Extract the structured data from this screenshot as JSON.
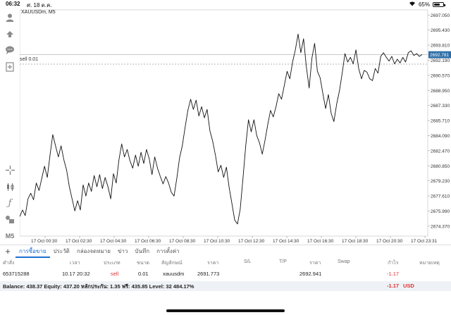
{
  "status_bar": {
    "time": "06:32",
    "date": "ศ. 18 ต.ค.",
    "battery": "65%",
    "battery_level": 0.65
  },
  "chart": {
    "title": "XAUUSDm, M5",
    "sell_line_label": "sell 0.01",
    "current_price": "2692.781"
  },
  "toolbar": {
    "timeframe": "M5"
  },
  "tabs": {
    "items": [
      "การซื้อขาย",
      "ประวัติ",
      "กล่องจดหมาย",
      "ข่าว",
      "บันทึก",
      "การตั้งค่า"
    ],
    "active": 0
  },
  "orders": {
    "headers": [
      "คำสั่ง",
      "เวลา",
      "ประเภท",
      "ขนาด",
      "สัญลักษณ์",
      "ราคา",
      "S/L",
      "T/P",
      "ราคา",
      "Swap",
      "กำไร",
      "หมายเหตุ"
    ],
    "rows": [
      {
        "ticket": "653715288",
        "time": "10.17 20:32",
        "type": "sell",
        "size": "0.01",
        "symbol": "xauusdm",
        "open_price": "2691.773",
        "sl": "",
        "tp": "",
        "current_price": "2692.941",
        "swap": "",
        "profit": "-1.17",
        "comment": ""
      }
    ]
  },
  "balance": {
    "text": "Balance: 438.37  Equity: 437.20  หลักประกัน: 1.35  ฟรี: 435.85  Level: 32 484.17%",
    "profit": "-1.17",
    "currency": "USD"
  },
  "chart_data": {
    "type": "line",
    "symbol": "XAUUSDm",
    "timeframe": "M5",
    "x_ticks": [
      "17 Oct 00:30",
      "17 Oct 02:30",
      "17 Oct 04:30",
      "17 Oct 06:30",
      "17 Oct 08:30",
      "17 Oct 10:30",
      "17 Oct 12:30",
      "17 Oct 14:30",
      "17 Oct 16:30",
      "17 Oct 18:30",
      "17 Oct 20:30",
      "17 Oct 23:31"
    ],
    "y_ticks": [
      2697.05,
      2695.43,
      2693.81,
      2692.19,
      2690.57,
      2688.95,
      2687.33,
      2685.71,
      2684.09,
      2682.47,
      2680.85,
      2679.23,
      2677.61,
      2675.99,
      2674.37
    ],
    "ylim": [
      2673.3,
      2697.6
    ],
    "sell_line": 2691.773,
    "last_price": 2692.781,
    "series": [
      {
        "values": [
          2675.4,
          2676.1,
          2675.5,
          2677.3,
          2677.9,
          2677.2,
          2679.0,
          2678.2,
          2679.5,
          2680.8,
          2679.6,
          2682.0,
          2684.2,
          2683.0,
          2681.8,
          2683.0,
          2681.5,
          2680.4,
          2678.6,
          2677.3,
          2676.0,
          2677.1,
          2676.1,
          2678.8,
          2677.6,
          2679.0,
          2678.1,
          2679.8,
          2678.6,
          2679.9,
          2678.4,
          2679.6,
          2678.6,
          2677.3,
          2680.0,
          2679.0,
          2681.5,
          2683.2,
          2681.8,
          2682.6,
          2681.4,
          2680.6,
          2682.0,
          2680.8,
          2682.3,
          2681.1,
          2682.6,
          2681.6,
          2679.9,
          2681.8,
          2680.6,
          2679.7,
          2678.9,
          2679.7,
          2679.0,
          2678.0,
          2677.6,
          2679.5,
          2681.7,
          2683.0,
          2685.0,
          2686.8,
          2688.0,
          2686.9,
          2687.9,
          2686.2,
          2687.2,
          2686.0,
          2686.9,
          2684.6,
          2683.5,
          2682.0,
          2680.2,
          2680.9,
          2679.6,
          2680.7,
          2678.5,
          2676.8,
          2675.0,
          2674.6,
          2676.2,
          2679.5,
          2683.0,
          2685.8,
          2684.5,
          2685.8,
          2684.1,
          2683.3,
          2682.1,
          2683.6,
          2685.3,
          2686.8,
          2686.1,
          2687.2,
          2688.6,
          2688.0,
          2689.5,
          2691.0,
          2690.2,
          2692.0,
          2693.3,
          2695.0,
          2693.0,
          2694.5,
          2691.5,
          2689.2,
          2692.4,
          2694.0,
          2691.0,
          2690.3,
          2688.6,
          2687.0,
          2688.5,
          2686.5,
          2685.6,
          2687.5,
          2688.9,
          2690.8,
          2692.9,
          2692.0,
          2692.5,
          2691.8,
          2693.3,
          2691.3,
          2690.2,
          2691.1,
          2690.9,
          2690.2,
          2690.0,
          2691.3,
          2690.8,
          2692.6,
          2693.0,
          2692.5,
          2692.1,
          2692.6,
          2691.8,
          2692.3,
          2691.9,
          2692.5,
          2692.0,
          2693.0,
          2693.2,
          2692.7,
          2692.9,
          2692.6,
          2692.8
        ]
      }
    ]
  }
}
